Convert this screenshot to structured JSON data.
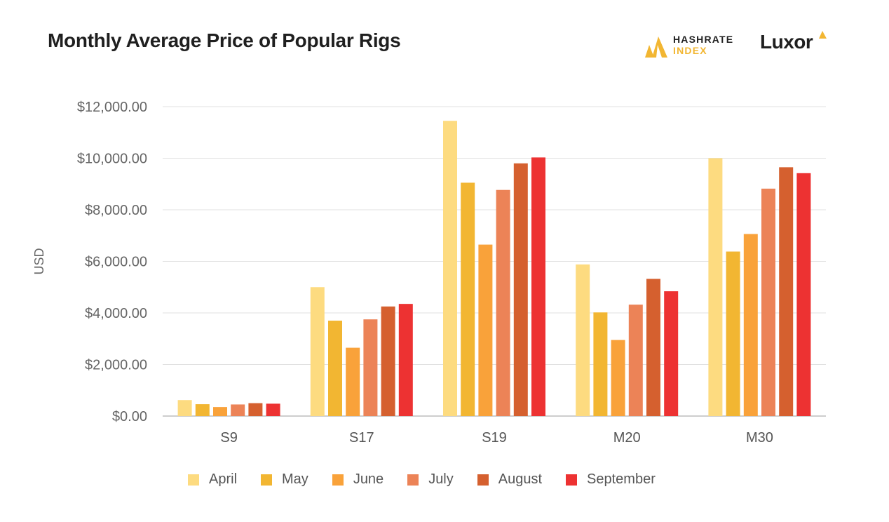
{
  "title": "Monthly Average Price of Popular Rigs",
  "brands": {
    "hashrate_line1": "HASHRATE",
    "hashrate_line2": "INDEX",
    "luxor": "Luxor",
    "gold": "#F2B632"
  },
  "chart_data": {
    "type": "bar",
    "title": "Monthly Average Price of Popular Rigs",
    "xlabel": "",
    "ylabel": "USD",
    "ylim": [
      0,
      12000
    ],
    "yticks": [
      0,
      2000,
      4000,
      6000,
      8000,
      10000,
      12000
    ],
    "ytick_labels": [
      "$0.00",
      "$2,000.00",
      "$4,000.00",
      "$6,000.00",
      "$8,000.00",
      "$10,000.00",
      "$12,000.00"
    ],
    "categories": [
      "S9",
      "S17",
      "S19",
      "M20",
      "M30"
    ],
    "grid": true,
    "legend_position": "bottom",
    "series": [
      {
        "name": "April",
        "color": "#FDDB80",
        "values": [
          620,
          5000,
          11450,
          5880,
          10000
        ]
      },
      {
        "name": "May",
        "color": "#F2B632",
        "values": [
          460,
          3700,
          9050,
          4020,
          6380
        ]
      },
      {
        "name": "June",
        "color": "#F9A23A",
        "values": [
          350,
          2650,
          6650,
          2950,
          7060
        ]
      },
      {
        "name": "July",
        "color": "#EC8357",
        "values": [
          450,
          3750,
          8770,
          4320,
          8820
        ]
      },
      {
        "name": "August",
        "color": "#D5602F",
        "values": [
          500,
          4250,
          9800,
          5320,
          9650
        ]
      },
      {
        "name": "September",
        "color": "#ED3232",
        "values": [
          480,
          4350,
          10030,
          4840,
          9420
        ]
      }
    ]
  }
}
